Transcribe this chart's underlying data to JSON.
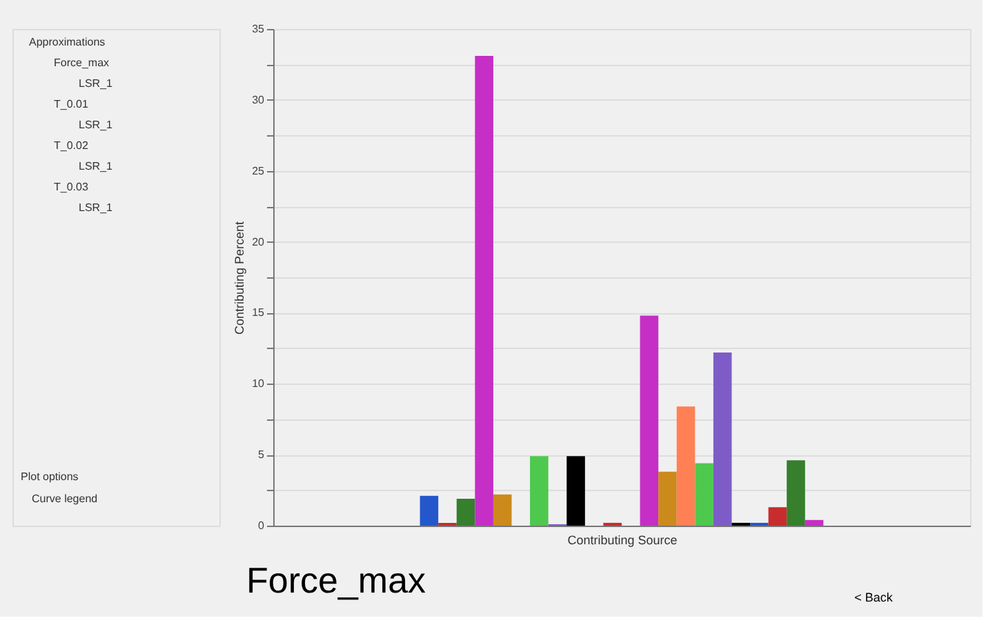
{
  "chart_data": {
    "type": "bar",
    "title": "Force_max",
    "ylabel": "Contributing Percent",
    "xlabel": "Contributing Source",
    "annotations": [
      "Approximations",
      "Force_max",
      "LSR_1",
      "T_0.01",
      "LSR_1",
      "T_0.02",
      "LSR_1",
      "T_0.03",
      "LSR_1",
      "Plot options",
      "Curve legend",
      "< Back"
    ],
    "categories": [
      null,
      null,
      null,
      null,
      null,
      null,
      null,
      null,
      null,
      null,
      null,
      null,
      null,
      null,
      null,
      null,
      null,
      null,
      null,
      null,
      null,
      null,
      null,
      null,
      null,
      null,
      null,
      null,
      null,
      null,
      null,
      null,
      null,
      null,
      null,
      null,
      null,
      null
    ],
    "values": [
      null,
      null,
      null,
      null,
      null,
      null,
      null,
      null,
      2.1,
      0.2,
      1.9,
      33.1,
      2.2,
      null,
      4.9,
      0.1,
      4.9,
      null,
      0.2,
      null,
      14.8,
      3.8,
      8.4,
      4.4,
      12.2,
      0.2,
      0.2,
      1.3,
      4.6,
      0.4,
      null,
      null,
      null,
      null,
      null,
      null,
      null,
      null
    ],
    "colors": [
      "#c92c2c",
      "#357f2d",
      "#c52fc5",
      "#cc8a1c",
      "#ff8055",
      "#4ec94e",
      "#7e5cc8",
      "#000000",
      "#2457cc",
      "#c92c2c",
      "#357f2d",
      "#c52fc5",
      "#cc8a1c",
      "#ff8055",
      "#4ec94e",
      "#7e5cc8",
      "#000000",
      "#2457cc",
      "#c92c2c",
      "#357f2d",
      "#c52fc5",
      "#cc8a1c",
      "#ff8055",
      "#4ec94e",
      "#7e5cc8",
      "#000000",
      "#2457cc",
      "#c92c2c",
      "#357f2d",
      "#c52fc5",
      "#cc8a1c",
      "#ff8055",
      "#4ec94e",
      "#7e5cc8",
      "#000000",
      "#2457cc",
      "#c92c2c",
      "#357f2d"
    ],
    "ylim": [
      0,
      35
    ],
    "yticks": [
      0,
      {
        "value": 2.5,
        "label": null
      },
      5,
      {
        "value": 7.5,
        "label": null
      },
      10,
      {
        "value": 12.5,
        "label": null
      },
      15,
      {
        "value": 17.5,
        "label": null
      },
      20,
      {
        "value": 22.5,
        "label": null
      },
      25,
      {
        "value": 27.5,
        "label": null
      },
      30,
      {
        "value": 32.5,
        "label": null
      },
      35
    ],
    "grid": "y",
    "tick_labels": "y"
  }
}
